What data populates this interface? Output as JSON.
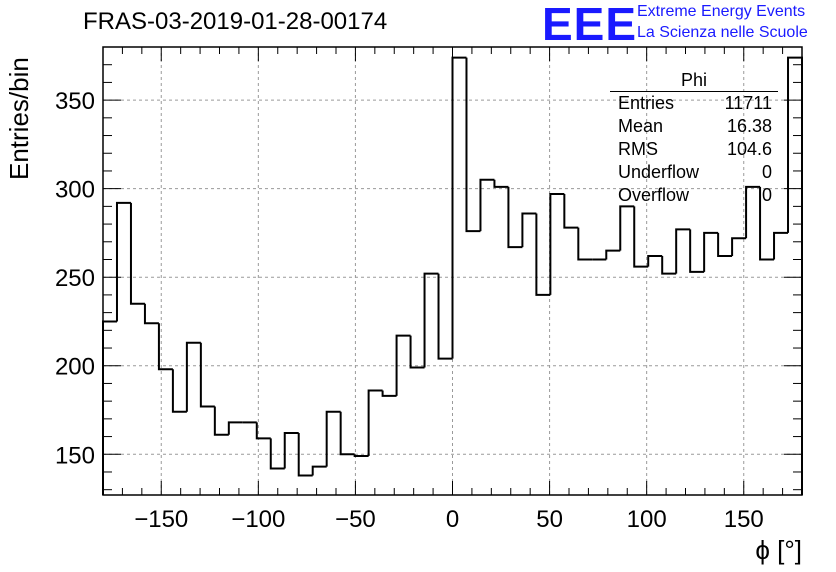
{
  "chart_data": {
    "type": "bar",
    "style": "step-histogram",
    "title": "FRAS-03-2019-01-28-00174",
    "xlabel": "ϕ [°]",
    "ylabel": "Entries/bin",
    "xlim": [
      -180,
      180
    ],
    "ylim": [
      127,
      380
    ],
    "xticks": [
      -150,
      -100,
      -50,
      0,
      50,
      100,
      150
    ],
    "yticks": [
      150,
      200,
      250,
      300,
      350
    ],
    "grid": true,
    "bin_width": 7.2,
    "values": [
      225,
      292,
      235,
      224,
      198,
      174,
      213,
      177,
      161,
      168,
      168,
      159,
      142,
      162,
      138,
      143,
      174,
      150,
      149,
      186,
      183,
      217,
      199,
      252,
      204,
      374,
      276,
      305,
      301,
      267,
      286,
      240,
      297,
      278,
      260,
      260,
      265,
      290,
      256,
      262,
      252,
      277,
      253,
      275,
      262,
      272,
      301,
      260,
      275,
      374
    ],
    "stats": {
      "name": "Phi",
      "rows": [
        {
          "label": "Entries",
          "value": "11711"
        },
        {
          "label": "Mean",
          "value": "16.38"
        },
        {
          "label": "RMS",
          "value": "104.6"
        },
        {
          "label": "Underflow",
          "value": "0"
        },
        {
          "label": "Overflow",
          "value": "0"
        }
      ]
    }
  },
  "branding": {
    "logo": "EEE",
    "line1": "Extreme Energy Events",
    "line2": "La Scienza nelle Scuole",
    "color": "#1a1aff"
  }
}
